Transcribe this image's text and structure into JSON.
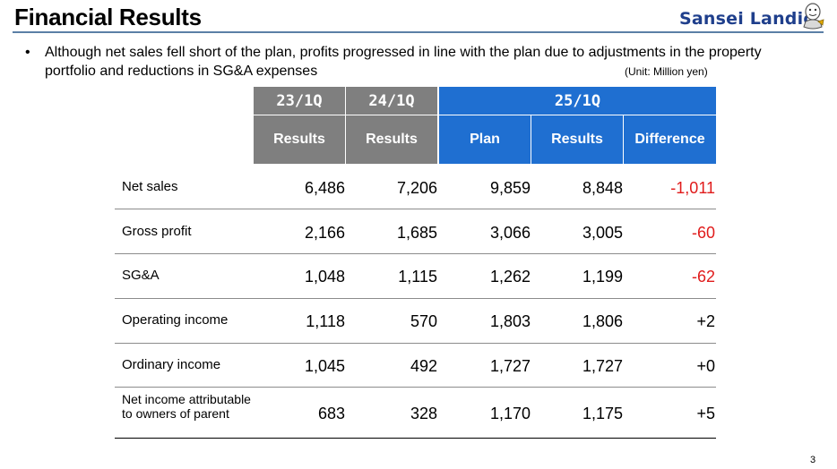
{
  "header": {
    "title": "Financial Results",
    "logo_text": "Sansei Landic"
  },
  "bullet": {
    "symbol": "•",
    "text": "Although net sales fell short of the plan, profits progressed in line with the plan due to adjustments in the property portfolio and reductions in SG&A expenses"
  },
  "unit_note": "(Unit: Million yen)",
  "table": {
    "periods": [
      "23/1Q",
      "24/1Q",
      "25/1Q"
    ],
    "subheaders": [
      "Results",
      "Results",
      "Plan",
      "Results",
      "Difference"
    ],
    "rows": [
      {
        "label": "Net sales",
        "values": [
          "6,486",
          "7,206",
          "9,859",
          "8,848",
          "-1,011"
        ]
      },
      {
        "label": "Gross profit",
        "values": [
          "2,166",
          "1,685",
          "3,066",
          "3,005",
          "-60"
        ]
      },
      {
        "label": "SG&A",
        "values": [
          "1,048",
          "1,115",
          "1,262",
          "1,199",
          "-62"
        ]
      },
      {
        "label": "Operating income",
        "values": [
          "1,118",
          "570",
          "1,803",
          "1,806",
          "+2"
        ]
      },
      {
        "label": "Ordinary income",
        "values": [
          "1,045",
          "492",
          "1,727",
          "1,727",
          "+0"
        ]
      },
      {
        "label": "Net income attributable to owners of parent",
        "values": [
          "683",
          "328",
          "1,170",
          "1,175",
          "+5"
        ]
      }
    ]
  },
  "colors": {
    "gray_header": "#7f7f7f",
    "blue_header": "#1f6fd1",
    "negative": "#e01b1b",
    "logo": "#1f3f8c"
  },
  "page_number": "3"
}
